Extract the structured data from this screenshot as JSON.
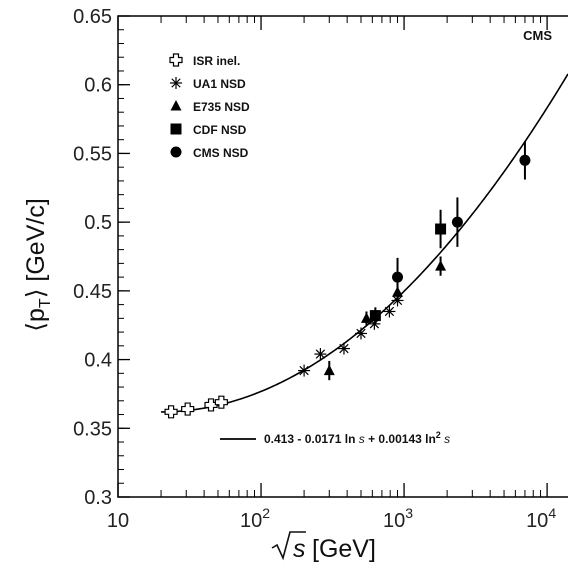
{
  "chart_data": {
    "type": "scatter",
    "experiment_label": "CMS",
    "xlabel_root": "s",
    "xlabel_unit": "[GeV]",
    "ylabel_main": "⟨p",
    "ylabel_sub": "T",
    "ylabel_unit": "⟩ [GeV/c]",
    "x_scale": "log",
    "xlim": [
      10,
      14000
    ],
    "ylim": [
      0.3,
      0.65
    ],
    "x_ticks": [
      {
        "value": 10,
        "base": "10",
        "exp": ""
      },
      {
        "value": 100,
        "base": "10",
        "exp": "2"
      },
      {
        "value": 1000,
        "base": "10",
        "exp": "3"
      },
      {
        "value": 10000,
        "base": "10",
        "exp": "4"
      }
    ],
    "y_ticks": [
      {
        "value": 0.3,
        "label": "0.3"
      },
      {
        "value": 0.35,
        "label": "0.35"
      },
      {
        "value": 0.4,
        "label": "0.4"
      },
      {
        "value": 0.45,
        "label": "0.45"
      },
      {
        "value": 0.5,
        "label": "0.5"
      },
      {
        "value": 0.55,
        "label": "0.55"
      },
      {
        "value": 0.6,
        "label": "0.6"
      },
      {
        "value": 0.65,
        "label": "0.65"
      }
    ],
    "legend_position": "top-left",
    "series": [
      {
        "name": "ISR inel.",
        "marker": "open-cross",
        "points": [
          {
            "x": 23.5,
            "y": 0.362
          },
          {
            "x": 30.7,
            "y": 0.364
          },
          {
            "x": 44.7,
            "y": 0.367
          },
          {
            "x": 52.8,
            "y": 0.369
          }
        ]
      },
      {
        "name": "UA1 NSD",
        "marker": "asterisk",
        "points": [
          {
            "x": 200,
            "y": 0.392
          },
          {
            "x": 260,
            "y": 0.404
          },
          {
            "x": 380,
            "y": 0.408
          },
          {
            "x": 500,
            "y": 0.419
          },
          {
            "x": 620,
            "y": 0.426
          },
          {
            "x": 790,
            "y": 0.435
          },
          {
            "x": 900,
            "y": 0.443
          }
        ]
      },
      {
        "name": "E735 NSD",
        "marker": "filled-triangle",
        "points": [
          {
            "x": 300,
            "y": 0.392,
            "err": 0.007
          },
          {
            "x": 546,
            "y": 0.43,
            "err": 0.005
          },
          {
            "x": 900,
            "y": 0.449,
            "err": 0.006
          },
          {
            "x": 1800,
            "y": 0.468,
            "err": 0.007
          }
        ]
      },
      {
        "name": "CDF NSD",
        "marker": "filled-square",
        "points": [
          {
            "x": 630,
            "y": 0.432,
            "err": 0.006
          },
          {
            "x": 1800,
            "y": 0.495,
            "err": 0.014
          }
        ]
      },
      {
        "name": "CMS NSD",
        "marker": "filled-circle",
        "points": [
          {
            "x": 900,
            "y": 0.46,
            "err": 0.014
          },
          {
            "x": 2360,
            "y": 0.5,
            "err": 0.018
          },
          {
            "x": 7000,
            "y": 0.545,
            "err": 0.014
          }
        ]
      }
    ],
    "fit": {
      "label_prefix": "0.413 - 0.0171 ln ",
      "label_s1": "s",
      "label_mid": " + 0.00143 ln",
      "label_sup": "2",
      "label_s2": " s",
      "a": 0.413,
      "b": -0.0171,
      "c": 0.00143,
      "x_range": [
        20,
        14000
      ]
    }
  }
}
